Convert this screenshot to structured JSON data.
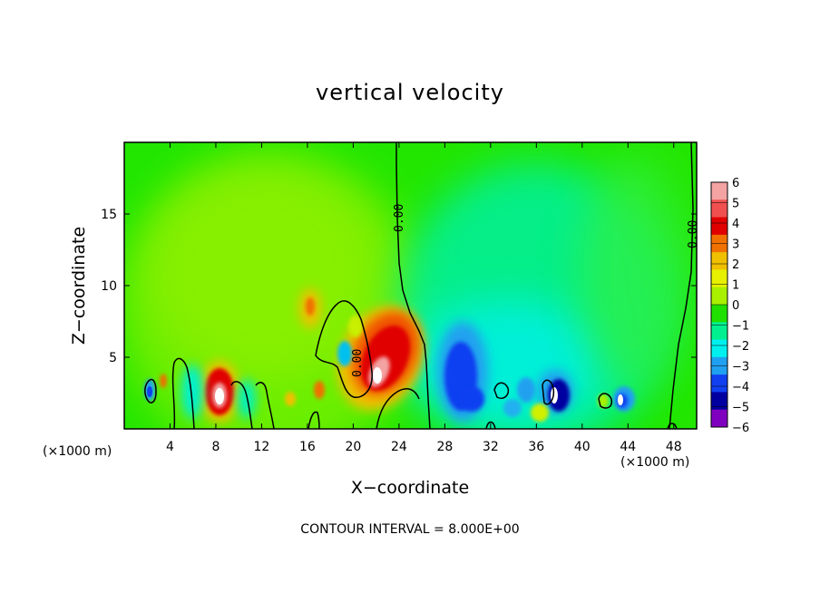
{
  "chart_data": {
    "type": "heatmap",
    "title": "vertical velocity",
    "xlabel": "X−coordinate",
    "ylabel": "Z−coordinate",
    "x_unit_left": "(×1000 m)",
    "x_unit_right": "(×1000 m)",
    "xlim": [
      0,
      50
    ],
    "ylim": [
      0,
      20
    ],
    "x_ticks": [
      4,
      8,
      12,
      16,
      20,
      24,
      28,
      32,
      36,
      40,
      44,
      48
    ],
    "y_ticks": [
      5,
      10,
      15
    ],
    "colorbar": {
      "min": -6,
      "max": 6,
      "labels": [
        "6",
        "5",
        "4",
        "3",
        "2",
        "1",
        "0",
        "−1",
        "−2",
        "−3",
        "−4",
        "−5",
        "−6"
      ],
      "colors": [
        "#f4a3a3",
        "#f05050",
        "#e00000",
        "#f07000",
        "#f0c000",
        "#e6f000",
        "#a8f000",
        "#20e000",
        "#00f090",
        "#00f0f0",
        "#20a0f0",
        "#1040f0",
        "#0000a0",
        "#8000c0"
      ]
    },
    "contour_labels": [
      "0.00",
      "0.00",
      "0.00"
    ],
    "footer": "CONTOUR INTERVAL = 8.000E+00",
    "features": [
      {
        "x": 8.5,
        "z": 2.2,
        "w": 6,
        "type": "updraft"
      },
      {
        "x": 22.5,
        "z": 4.5,
        "w": 5,
        "type": "updraft"
      },
      {
        "x": 16.3,
        "z": 8.5,
        "w": 1.5,
        "type": "updraft"
      },
      {
        "x": 29.5,
        "z": 4.0,
        "w": -4,
        "type": "downdraft"
      },
      {
        "x": 37.8,
        "z": 2.4,
        "w": -5,
        "type": "downdraft"
      },
      {
        "x": 43.3,
        "z": 2.0,
        "w": -4,
        "type": "downdraft"
      },
      {
        "x": 2.0,
        "z": 2.5,
        "w": -3,
        "type": "downdraft"
      }
    ]
  }
}
